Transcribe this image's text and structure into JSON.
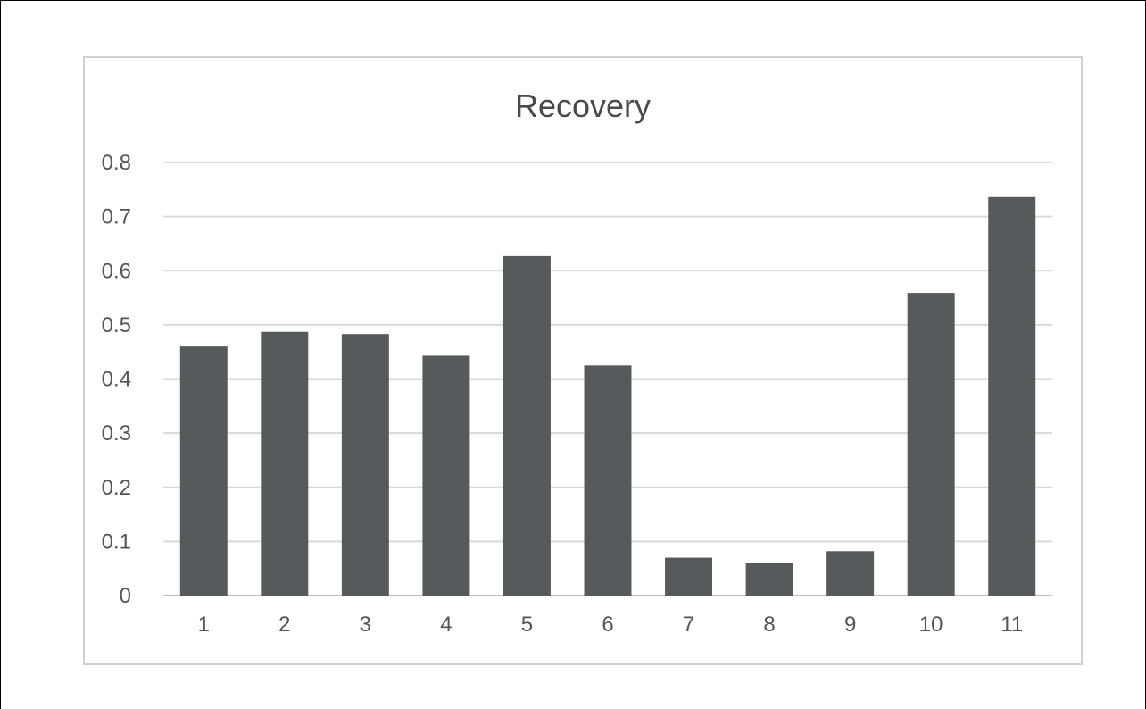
{
  "chart_data": {
    "type": "bar",
    "title": "Recovery",
    "xlabel": "",
    "ylabel": "",
    "categories": [
      "1",
      "2",
      "3",
      "4",
      "5",
      "6",
      "7",
      "8",
      "9",
      "10",
      "11"
    ],
    "values": [
      0.46,
      0.487,
      0.483,
      0.443,
      0.627,
      0.425,
      0.07,
      0.06,
      0.082,
      0.559,
      0.736
    ],
    "ylim": [
      0,
      0.8
    ],
    "yticks": [
      "0",
      "0.1",
      "0.2",
      "0.3",
      "0.4",
      "0.5",
      "0.6",
      "0.7",
      "0.8"
    ],
    "grid": true,
    "legend": "none",
    "colors": {
      "bar": "#58595b",
      "grid": "#d9d9d9",
      "axis": "#bfbfbf",
      "frame": "#d0d0d0"
    }
  }
}
